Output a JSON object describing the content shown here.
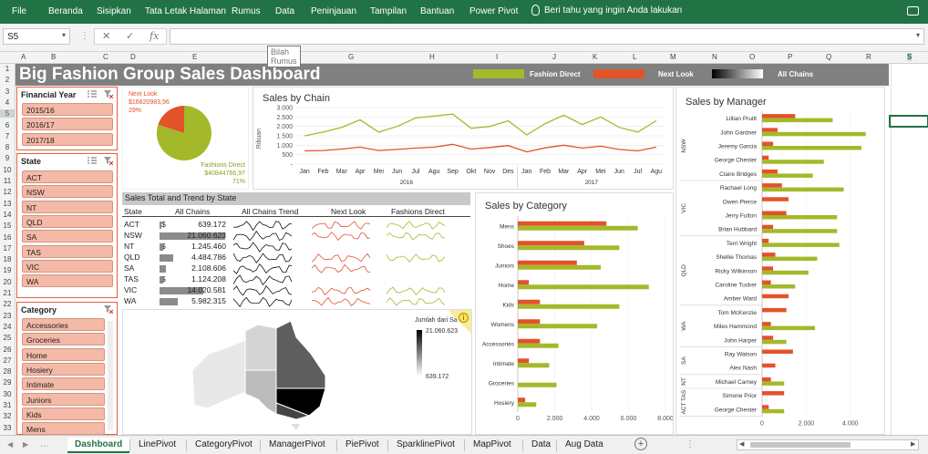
{
  "ribbon": {
    "tabs": [
      "File",
      "Beranda",
      "Sisipkan",
      "Tata Letak Halaman",
      "Rumus",
      "Data",
      "Peninjauan",
      "Tampilan",
      "Bantuan",
      "Power Pivot"
    ],
    "tell_me": "Beri tahu yang ingin Anda lakukan"
  },
  "formula_bar": {
    "name_box": "S5",
    "fx": "fx",
    "cancel": "✕",
    "enter": "✓",
    "tooltip": "Bilah Rumus"
  },
  "columns": [
    "A",
    "B",
    "C",
    "D",
    "E",
    "F",
    "G",
    "H",
    "I",
    "J",
    "K",
    "L",
    "M",
    "N",
    "O",
    "P",
    "Q",
    "R",
    "S"
  ],
  "rows": [
    "1",
    "2",
    "3",
    "4",
    "5",
    "6",
    "7",
    "8",
    "9",
    "10",
    "11",
    "12",
    "13",
    "14",
    "15",
    "16",
    "17",
    "18",
    "19",
    "20",
    "21",
    "22",
    "23",
    "24",
    "25",
    "26",
    "27",
    "28",
    "29",
    "30",
    "31",
    "32",
    "33"
  ],
  "dashboard": {
    "title": "Big Fashion Group Sales Dashboard",
    "legend": [
      {
        "name": "Fashion Direct",
        "color": "#a4b92a"
      },
      {
        "name": "Next Look",
        "color": "#e2532a"
      },
      {
        "name": "All Chains",
        "color": "gradient"
      }
    ]
  },
  "slicers": {
    "financial_year": {
      "title": "Financial Year",
      "items": [
        "2015/16",
        "2016/17",
        "2017/18"
      ]
    },
    "state": {
      "title": "State",
      "items": [
        "ACT",
        "NSW",
        "NT",
        "QLD",
        "SA",
        "TAS",
        "VIC",
        "WA"
      ]
    },
    "category": {
      "title": "Category",
      "items": [
        "Accessories",
        "Groceries",
        "Home",
        "Hosiery",
        "Intimate",
        "Juniors",
        "Kids",
        "Mens"
      ]
    }
  },
  "pie": {
    "next_look_label": "Next Look",
    "next_look_value": "$16820983,96",
    "next_look_pct": "29%",
    "fashion_label": "Fashions Direct",
    "fashion_value": "$40844766,97",
    "fashion_pct": "71%"
  },
  "chart_data": [
    {
      "type": "line",
      "title": "Sales by Chain",
      "ylabel": "Ribuan",
      "ylim": [
        0,
        3000
      ],
      "yticks": [
        "3.000",
        "2.500",
        "2.000",
        "1.500",
        "1.000",
        "500",
        "-"
      ],
      "categories": [
        "Jan",
        "Feb",
        "Mar",
        "Apr",
        "Mei",
        "Jun",
        "Jul",
        "Agu",
        "Sep",
        "Okt",
        "Nov",
        "Des",
        "Jan",
        "Feb",
        "Mar",
        "Apr",
        "Mei",
        "Jun",
        "Jul",
        "Agu"
      ],
      "groups": [
        {
          "label": "2016"
        },
        {
          "label": "2017"
        }
      ],
      "series": [
        {
          "name": "Fashion Direct",
          "color": "#a4b92a",
          "values": [
            1500,
            1700,
            1950,
            2350,
            1700,
            2000,
            2450,
            2550,
            2650,
            1900,
            2000,
            2300,
            1550,
            2150,
            2600,
            2100,
            2500,
            1950,
            1700,
            2300
          ]
        },
        {
          "name": "Next Look",
          "color": "#e2532a",
          "values": [
            700,
            720,
            800,
            900,
            720,
            780,
            850,
            900,
            1050,
            800,
            880,
            980,
            650,
            860,
            1000,
            850,
            950,
            780,
            700,
            900
          ]
        }
      ]
    },
    {
      "type": "bar",
      "title": "Sales by Category",
      "categories": [
        "Mens",
        "Shoes",
        "Juniors",
        "Home",
        "Kids",
        "Womens",
        "Accessories",
        "Intimate",
        "Groceries",
        "Hosiery"
      ],
      "xticks": [
        "0",
        "2.000",
        "4.000",
        "6.000",
        "8.000"
      ],
      "xlim": [
        0,
        8000
      ],
      "series": [
        {
          "name": "Next Look",
          "color": "#e2532a",
          "values": [
            4800,
            3600,
            3200,
            600,
            1200,
            1200,
            1200,
            600,
            0,
            400
          ]
        },
        {
          "name": "Fashion Direct",
          "color": "#a4b92a",
          "values": [
            6500,
            5500,
            4500,
            7100,
            5500,
            4300,
            2200,
            1700,
            2100,
            1000
          ]
        }
      ]
    },
    {
      "type": "bar",
      "title": "Sales by Manager",
      "categories": [
        "Lillian Pruitt",
        "John Gardner",
        "Jeremy Garcia",
        "George Chester",
        "Claire Bridges",
        "Rachael Long",
        "Owen Pierce",
        "Jerry Fulton",
        "Brian Hubbard",
        "Terri Wright",
        "Shellie Thomas",
        "Ricky Wilkinson",
        "Caroline Tucker",
        "Amber Ward",
        "Tom McKenzie",
        "Miles Hammond",
        "John Harper",
        "Ray Watson",
        "Alex Nash",
        "Michael Carney",
        "Simone Prior",
        "George Chester"
      ],
      "state_groups": [
        {
          "label": "NSW",
          "from": 0,
          "to": 4
        },
        {
          "label": "VIC",
          "from": 5,
          "to": 8
        },
        {
          "label": "QLD",
          "from": 9,
          "to": 13
        },
        {
          "label": "WA",
          "from": 14,
          "to": 16
        },
        {
          "label": "SA",
          "from": 17,
          "to": 18
        },
        {
          "label": "NT",
          "from": 19,
          "to": 19
        },
        {
          "label": "ACT TAS",
          "from": 20,
          "to": 21
        }
      ],
      "xticks": [
        "0",
        "2.000",
        "4.000"
      ],
      "xlim": [
        0,
        5000
      ],
      "series": [
        {
          "name": "Next Look",
          "color": "#e2532a",
          "values": [
            1500,
            700,
            500,
            300,
            700,
            900,
            1200,
            1100,
            500,
            300,
            600,
            500,
            400,
            1200,
            1100,
            400,
            500,
            1400,
            600,
            400,
            1000,
            300
          ]
        },
        {
          "name": "Fashion Direct",
          "color": "#a4b92a",
          "values": [
            3200,
            4700,
            4500,
            2800,
            2300,
            3700,
            0,
            3400,
            3400,
            3500,
            2500,
            2100,
            1500,
            0,
            0,
            2400,
            1100,
            0,
            0,
            1000,
            0,
            1000
          ]
        }
      ]
    },
    {
      "type": "table",
      "title": "Sales Total and Trend by State",
      "columns": [
        "State",
        "All Chains",
        "All Chains Trend",
        "Next Look",
        "Fashions Direct"
      ],
      "rows": [
        {
          "state": "ACT",
          "value": "639.172",
          "raw": 639172
        },
        {
          "state": "NSW",
          "value": "21.060.623",
          "raw": 21060623
        },
        {
          "state": "NT",
          "value": "1.245.460",
          "raw": 1245460
        },
        {
          "state": "QLD",
          "value": "4.484.786",
          "raw": 4484786
        },
        {
          "state": "SA",
          "value": "2.108.606",
          "raw": 2108606
        },
        {
          "state": "TAS",
          "value": "1.124.208",
          "raw": 1124208
        },
        {
          "state": "VIC",
          "value": "14.020.581",
          "raw": 14020581
        },
        {
          "state": "WA",
          "value": "5.982.315",
          "raw": 5982315
        }
      ],
      "currency": "$"
    }
  ],
  "map": {
    "legend_title": "Jumlah dari Sa",
    "max": "21.060.623",
    "min": "639.172",
    "info": "i"
  },
  "sheet_tabs": [
    "Dashboard",
    "LinePivot",
    "CategoryPivot",
    "ManagerPivot",
    "PiePivot",
    "SparklinePivot",
    "MapPivot",
    "Data",
    "Aug Data"
  ],
  "active_tab": "Dashboard"
}
